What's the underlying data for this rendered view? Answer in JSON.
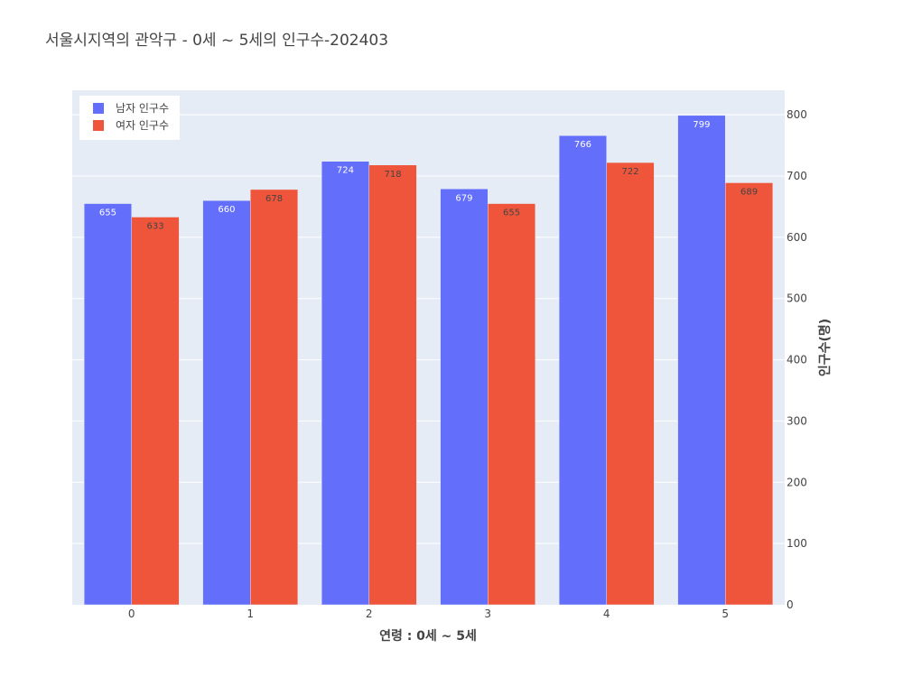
{
  "chart_data": {
    "type": "bar",
    "title": "서울시지역의 관악구 - 0세 ~ 5세의 인구수-202403",
    "xlabel": "연령 : 0세 ~ 5세",
    "ylabel": "인구수(명)",
    "categories": [
      "0",
      "1",
      "2",
      "3",
      "4",
      "5"
    ],
    "ylim": [
      0,
      840
    ],
    "yticks": [
      0,
      100,
      200,
      300,
      400,
      500,
      600,
      700,
      800
    ],
    "y_axis_side": "right",
    "grid": true,
    "legend_position": "top-left",
    "series": [
      {
        "name": "남자 인구수",
        "color": "#636efa",
        "label_color": "#ffffff",
        "values": [
          655,
          660,
          724,
          679,
          766,
          799
        ]
      },
      {
        "name": "여자 인구수",
        "color": "#ef553b",
        "label_color": "#444444",
        "values": [
          633,
          678,
          718,
          655,
          722,
          689
        ]
      }
    ]
  },
  "colors": {
    "plot_background": "#e5ecf6",
    "grid": "#ffffff",
    "text": "#444444"
  }
}
